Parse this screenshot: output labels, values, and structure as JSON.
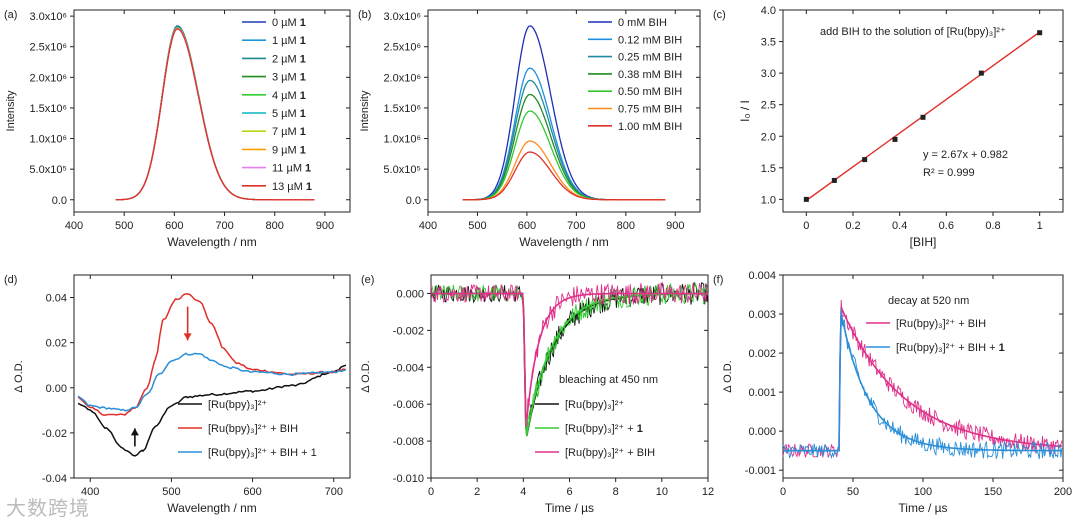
{
  "watermark": "大数跨境",
  "chart_data": [
    {
      "id": "a",
      "type": "line",
      "panel_label": "(a)",
      "xlabel": "Wavelength / nm",
      "ylabel": "Intensity",
      "xlim": [
        400,
        950
      ],
      "ylim": [
        -200000,
        3100000
      ],
      "xticks": [
        400,
        500,
        600,
        700,
        800,
        900
      ],
      "yticks": [
        0,
        500000,
        1000000,
        1500000,
        2000000,
        2500000,
        3000000
      ],
      "ytick_labels": [
        "0.0",
        "5.0x10⁵",
        "1.0x10⁶",
        "1.5x10⁶",
        "2.0x10⁶",
        "2.5x10⁶",
        "3.0x10⁶"
      ],
      "peak": {
        "center": 606,
        "sigma_left": 30,
        "sigma_right": 42,
        "start": 483,
        "end": 880
      },
      "series": [
        {
          "name": "0 µM",
          "bold": "1",
          "peak": 2840000,
          "color": "#1f3fb5"
        },
        {
          "name": "1 µM",
          "bold": "1",
          "peak": 2830000,
          "color": "#1e96d6"
        },
        {
          "name": "2 µM",
          "bold": "1",
          "peak": 2825000,
          "color": "#1b8c8c"
        },
        {
          "name": "3 µM",
          "bold": "1",
          "peak": 2820000,
          "color": "#228b22"
        },
        {
          "name": "4 µM",
          "bold": "1",
          "peak": 2815000,
          "color": "#33cc33"
        },
        {
          "name": "5 µM",
          "bold": "1",
          "peak": 2810000,
          "color": "#0ab5c0"
        },
        {
          "name": "7 µM",
          "bold": "1",
          "peak": 2805000,
          "color": "#b5d610"
        },
        {
          "name": "9 µM",
          "bold": "1",
          "peak": 2800000,
          "color": "#ff9f00"
        },
        {
          "name": "11 µM",
          "bold": "1",
          "peak": 2795000,
          "color": "#e77ef0"
        },
        {
          "name": "13 µM",
          "bold": "1",
          "peak": 2790000,
          "color": "#e0302a"
        }
      ]
    },
    {
      "id": "b",
      "type": "line",
      "panel_label": "(b)",
      "xlabel": "Wavelength / nm",
      "ylabel": "Intensity",
      "xlim": [
        400,
        950
      ],
      "ylim": [
        -200000,
        3100000
      ],
      "xticks": [
        400,
        500,
        600,
        700,
        800,
        900
      ],
      "yticks": [
        0,
        500000,
        1000000,
        1500000,
        2000000,
        2500000,
        3000000
      ],
      "ytick_labels": [
        "0.0",
        "5.0x10⁵",
        "1.0x10⁶",
        "1.5x10⁶",
        "2.0x10⁶",
        "2.5x10⁶",
        "3.0x10⁶"
      ],
      "peak": {
        "center": 606,
        "sigma_left": 30,
        "sigma_right": 42,
        "start": 470,
        "end": 880
      },
      "series": [
        {
          "name": "0 mM BIH",
          "peak": 2840000,
          "color": "#1f2fb5"
        },
        {
          "name": "0.12 mM BIH",
          "peak": 2150000,
          "color": "#1f8fe0"
        },
        {
          "name": "0.25 mM BIH",
          "peak": 1950000,
          "color": "#1f8aa0"
        },
        {
          "name": "0.38 mM BIH",
          "peak": 1720000,
          "color": "#228b22"
        },
        {
          "name": "0.50 mM BIH",
          "peak": 1450000,
          "color": "#32c832"
        },
        {
          "name": "0.75 mM BIH",
          "peak": 960000,
          "color": "#ff8c1a"
        },
        {
          "name": "1.00 mM BIH",
          "peak": 780000,
          "color": "#e0302a"
        }
      ]
    },
    {
      "id": "c",
      "type": "scatter",
      "panel_label": "(c)",
      "xlabel": "[BIH]",
      "ylabel": "I₀ / I",
      "xlim": [
        -0.1,
        1.1
      ],
      "ylim": [
        0.8,
        4.0
      ],
      "xticks": [
        0.0,
        0.2,
        0.4,
        0.6,
        0.8,
        1.0
      ],
      "yticks": [
        1.0,
        1.5,
        2.0,
        2.5,
        3.0,
        3.5,
        4.0
      ],
      "x": [
        0.0,
        0.12,
        0.25,
        0.38,
        0.5,
        0.75,
        1.0
      ],
      "y": [
        1.0,
        1.3,
        1.63,
        1.95,
        2.3,
        3.0,
        3.64
      ],
      "fit": {
        "slope": 2.67,
        "intercept": 0.982
      },
      "annotation": "add BIH to the solution of [Ru(bpy)₃]²⁺",
      "equation": "y = 2.67x + 0.982",
      "r2": "R² = 0.999"
    },
    {
      "id": "d",
      "type": "line",
      "panel_label": "(d)",
      "xlabel": "Wavelength / nm",
      "ylabel": "Δ O.D.",
      "xlim": [
        380,
        720
      ],
      "ylim": [
        -0.04,
        0.05
      ],
      "xticks": [
        400,
        500,
        600,
        700
      ],
      "yticks": [
        -0.04,
        -0.02,
        0.0,
        0.02,
        0.04
      ],
      "ytick_labels": [
        "-0.04",
        "-0.02",
        "0.00",
        "0.02",
        "0.04"
      ],
      "series": [
        {
          "name": "[Ru(bpy)₃]²⁺",
          "color": "#111111",
          "points": [
            [
              385,
              -0.007
            ],
            [
              400,
              -0.01
            ],
            [
              420,
              -0.018
            ],
            [
              440,
              -0.027
            ],
            [
              455,
              -0.03
            ],
            [
              465,
              -0.028
            ],
            [
              480,
              -0.017
            ],
            [
              500,
              -0.008
            ],
            [
              520,
              -0.004
            ],
            [
              550,
              -0.003
            ],
            [
              600,
              -0.0015
            ],
            [
              650,
              0.001
            ],
            [
              700,
              0.007
            ],
            [
              715,
              0.01
            ]
          ]
        },
        {
          "name": "[Ru(bpy)₃]²⁺ + BIH",
          "color": "#e0302a",
          "points": [
            [
              385,
              -0.004
            ],
            [
              400,
              -0.009
            ],
            [
              420,
              -0.012
            ],
            [
              440,
              -0.012
            ],
            [
              455,
              -0.009
            ],
            [
              470,
              0.0
            ],
            [
              480,
              0.012
            ],
            [
              490,
              0.03
            ],
            [
              505,
              0.039
            ],
            [
              520,
              0.042
            ],
            [
              535,
              0.038
            ],
            [
              550,
              0.028
            ],
            [
              565,
              0.017
            ],
            [
              580,
              0.011
            ],
            [
              600,
              0.008
            ],
            [
              650,
              0.006
            ],
            [
              700,
              0.007
            ],
            [
              715,
              0.008
            ]
          ]
        },
        {
          "name": "[Ru(bpy)₃]²⁺ + BIH + 1",
          "color": "#2b8fd8",
          "points": [
            [
              385,
              -0.004
            ],
            [
              400,
              -0.008
            ],
            [
              420,
              -0.009
            ],
            [
              440,
              -0.01
            ],
            [
              455,
              -0.009
            ],
            [
              470,
              -0.003
            ],
            [
              485,
              0.006
            ],
            [
              500,
              0.012
            ],
            [
              520,
              0.015
            ],
            [
              535,
              0.015
            ],
            [
              550,
              0.012
            ],
            [
              570,
              0.009
            ],
            [
              600,
              0.007
            ],
            [
              650,
              0.006
            ],
            [
              700,
              0.007
            ],
            [
              715,
              0.008
            ]
          ]
        }
      ],
      "arrows": [
        {
          "x": 520,
          "from": 0.036,
          "to": 0.021,
          "color": "#e0302a"
        },
        {
          "x": 455,
          "from": -0.026,
          "to": -0.018,
          "color": "#111111"
        }
      ]
    },
    {
      "id": "e",
      "type": "line",
      "panel_label": "(e)",
      "xlabel": "Time / µs",
      "ylabel": "Δ O.D.",
      "xlim": [
        0,
        12
      ],
      "ylim": [
        -0.01,
        0.001
      ],
      "xticks": [
        0,
        2,
        4,
        6,
        8,
        10,
        12
      ],
      "yticks": [
        -0.01,
        -0.008,
        -0.006,
        -0.004,
        -0.002,
        0.0
      ],
      "ytick_labels": [
        "-0.010",
        "-0.008",
        "-0.006",
        "-0.004",
        "-0.002",
        "0.000"
      ],
      "annotation": "bleaching at 450 nm",
      "onset": 4.0,
      "series": [
        {
          "name": "[Ru(bpy)₃]²⁺",
          "bold": "",
          "color": "#111111",
          "amp": -0.0088,
          "tau": 1.15
        },
        {
          "name": "[Ru(bpy)₃]²⁺ +",
          "bold": "1",
          "color": "#33cc33",
          "amp": -0.0088,
          "tau": 1.1
        },
        {
          "name": "[Ru(bpy)₃]²⁺ + BIH",
          "bold": "",
          "color": "#e0308a",
          "amp": -0.009,
          "tau": 0.55
        }
      ]
    },
    {
      "id": "f",
      "type": "line",
      "panel_label": "(f)",
      "xlabel": "Time / µs",
      "ylabel": "Δ O.D.",
      "xlim": [
        0,
        200
      ],
      "ylim": [
        -0.0012,
        0.004
      ],
      "xticks": [
        0,
        50,
        100,
        150,
        200
      ],
      "yticks": [
        -0.001,
        0.0,
        0.001,
        0.002,
        0.003,
        0.004
      ],
      "ytick_labels": [
        "-0.001",
        "0.000",
        "0.001",
        "0.002",
        "0.003",
        "0.004"
      ],
      "annotation": "decay at 520 nm",
      "onset": 40,
      "series": [
        {
          "name": "[Ru(bpy)₃]²⁺ + BIH",
          "bold": "",
          "color": "#e0308a",
          "amp": 0.0038,
          "tau": 45,
          "base": -0.0005
        },
        {
          "name": "[Ru(bpy)₃]²⁺ + BIH +",
          "bold": "1",
          "color": "#2b8fd8",
          "amp": 0.0038,
          "tau": 20,
          "base": -0.0005
        }
      ]
    }
  ]
}
